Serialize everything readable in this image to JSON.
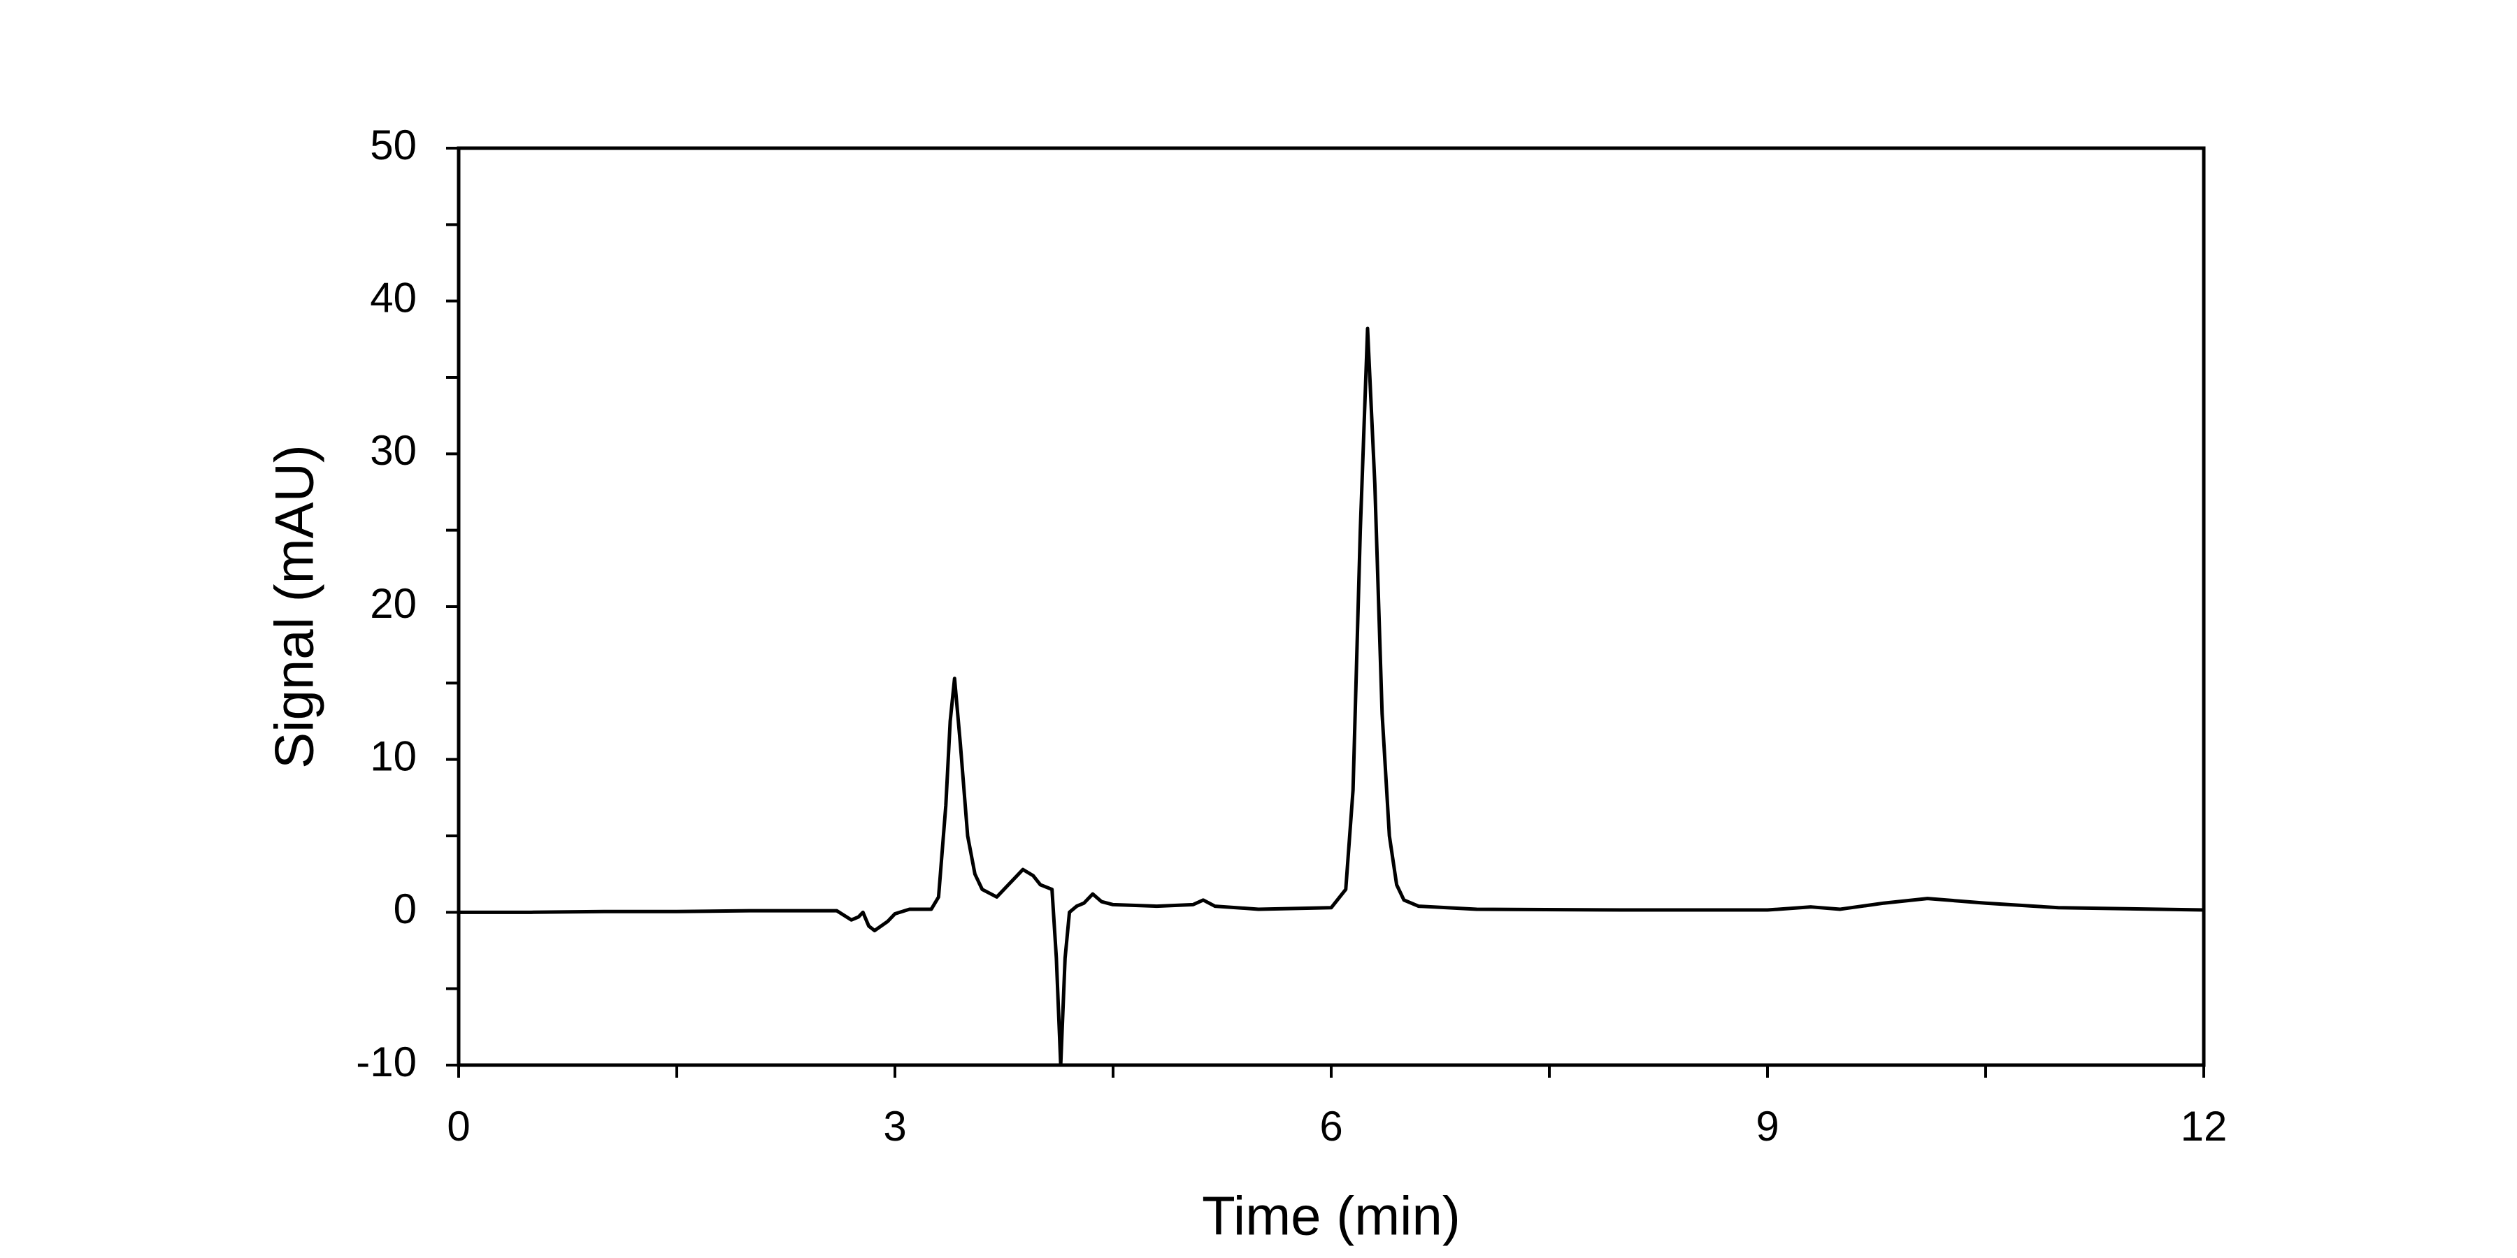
{
  "chart_data": {
    "type": "line",
    "x_label": "Time (min)",
    "y_label": "Signal (mAU)",
    "color": "#000000",
    "x": [
      0,
      0.5,
      1,
      1.5,
      2,
      2.5,
      2.6,
      2.7,
      2.75,
      2.78,
      2.82,
      2.86,
      2.95,
      3.0,
      3.1,
      3.25,
      3.3,
      3.35,
      3.38,
      3.41,
      3.45,
      3.5,
      3.55,
      3.6,
      3.7,
      3.8,
      3.88,
      3.95,
      4.0,
      4.08,
      4.11,
      4.14,
      4.17,
      4.2,
      4.25,
      4.3,
      4.36,
      4.42,
      4.5,
      4.8,
      5.05,
      5.12,
      5.2,
      5.5,
      6.0,
      6.1,
      6.15,
      6.2,
      6.25,
      6.3,
      6.35,
      6.4,
      6.45,
      6.5,
      6.6,
      7,
      8,
      9,
      9.3,
      9.5,
      9.8,
      10.1,
      10.5,
      11,
      12
    ],
    "values": [
      0,
      0,
      0.05,
      0.05,
      0.1,
      0.1,
      0.1,
      -0.5,
      -0.3,
      0,
      -0.9,
      -1.2,
      -0.6,
      -0.1,
      0.2,
      0.2,
      1,
      7,
      12.5,
      15.3,
      11,
      5,
      2.5,
      1.5,
      1,
      2,
      2.8,
      2.4,
      1.8,
      1.5,
      -3,
      -10,
      -3,
      0,
      0.4,
      0.6,
      1.2,
      0.7,
      0.5,
      0.4,
      0.5,
      0.8,
      0.4,
      0.2,
      0.3,
      1.5,
      8,
      25,
      38.2,
      28,
      13,
      5,
      1.8,
      0.8,
      0.4,
      0.2,
      0.15,
      0.15,
      0.35,
      0.2,
      0.6,
      0.9,
      0.6,
      0.3,
      0.15
    ],
    "xlim": [
      0,
      12
    ],
    "xticks": [
      0,
      3,
      6,
      9,
      12
    ],
    "ylim": [
      -10,
      50
    ],
    "yticks": [
      -10,
      0,
      10,
      20,
      30,
      40,
      50
    ],
    "grid": false
  }
}
